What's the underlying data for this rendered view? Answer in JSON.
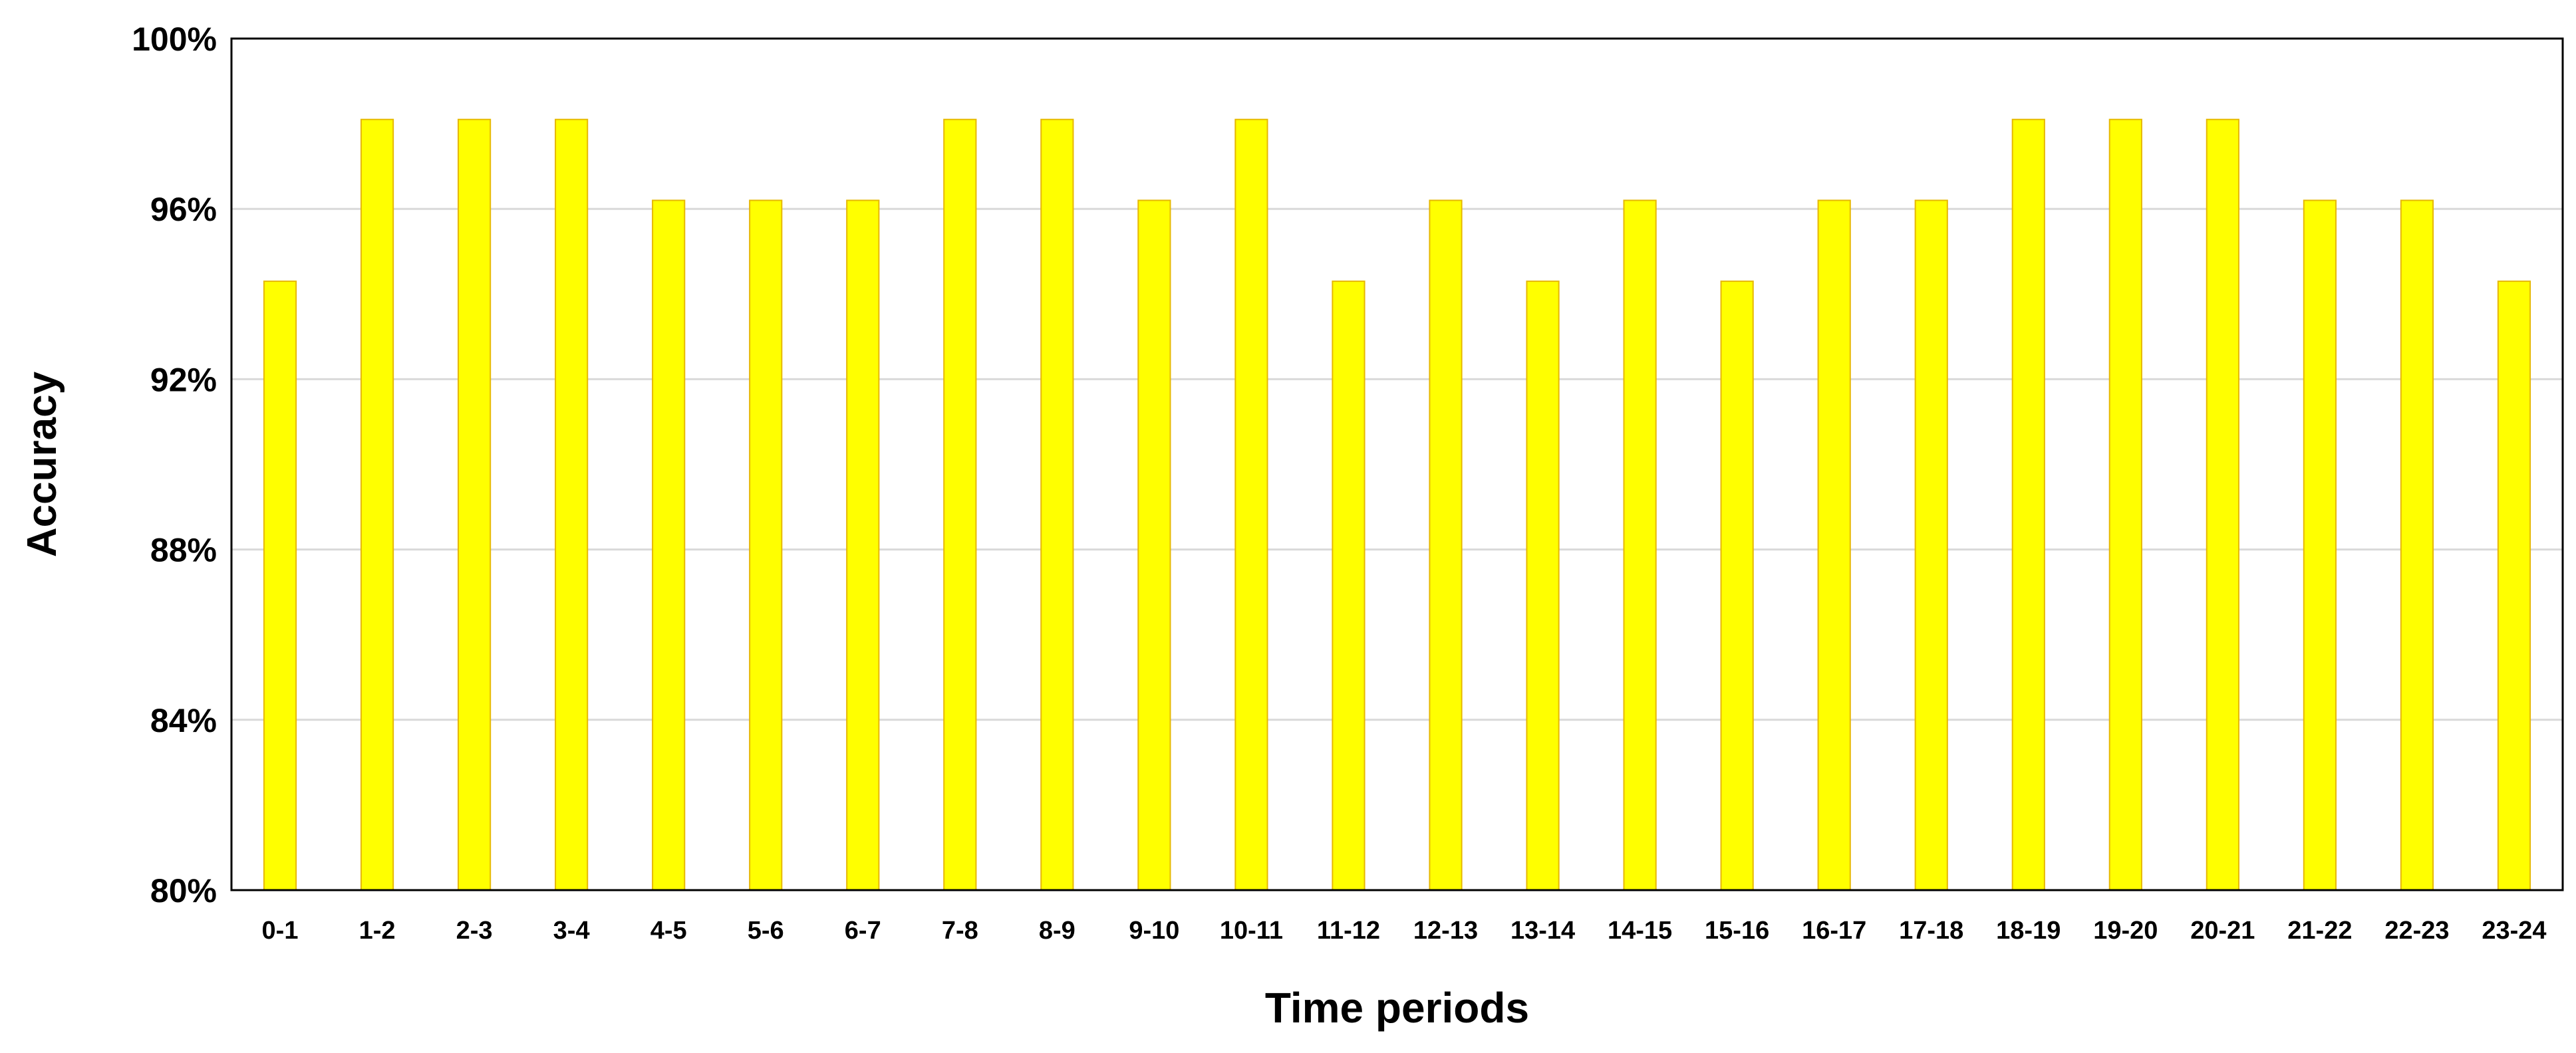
{
  "chart_data": {
    "type": "bar",
    "title": "",
    "xlabel": "Time periods",
    "ylabel": "Accuracy",
    "ylim": [
      80,
      100
    ],
    "yticks": [
      80,
      84,
      88,
      92,
      96,
      100
    ],
    "ytick_labels": [
      "80%",
      "84%",
      "88%",
      "92%",
      "96%",
      "100%"
    ],
    "grid": "horizontal",
    "legend": "none",
    "bar_color": "#FFFF00",
    "bar_edge_color": "#E6B800",
    "categories": [
      "0-1",
      "1-2",
      "2-3",
      "3-4",
      "4-5",
      "5-6",
      "6-7",
      "7-8",
      "8-9",
      "9-10",
      "10-11",
      "11-12",
      "12-13",
      "13-14",
      "14-15",
      "15-16",
      "16-17",
      "17-18",
      "18-19",
      "19-20",
      "20-21",
      "21-22",
      "22-23",
      "23-24"
    ],
    "values": [
      94.3,
      98.1,
      98.1,
      98.1,
      96.2,
      96.2,
      96.2,
      98.1,
      98.1,
      96.2,
      98.1,
      94.3,
      96.2,
      94.3,
      96.2,
      94.3,
      96.2,
      96.2,
      98.1,
      98.1,
      98.1,
      96.2,
      96.2,
      94.3
    ]
  }
}
